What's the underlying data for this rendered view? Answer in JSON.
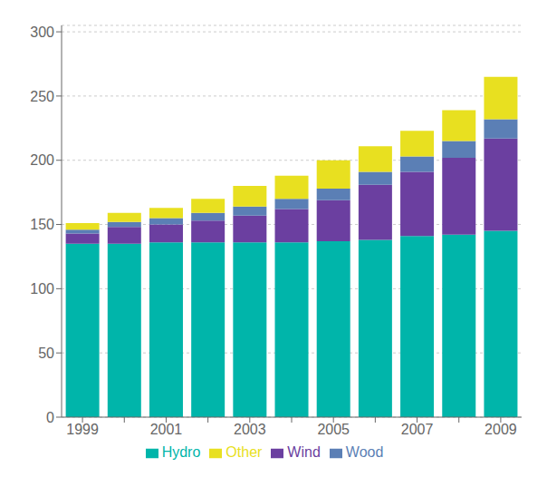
{
  "chart_data": {
    "type": "bar",
    "stacked": true,
    "categories": [
      "1999",
      null,
      "2001",
      null,
      "2003",
      null,
      "2005",
      null,
      "2007",
      null,
      "2009"
    ],
    "series": [
      {
        "name": "Hydro",
        "color": "#00b5aa",
        "values": [
          135,
          135,
          136,
          136,
          136,
          136,
          137,
          138,
          141,
          142,
          145
        ]
      },
      {
        "name": "Wind",
        "color": "#6b3fa0",
        "values": [
          8,
          13,
          14,
          17,
          21,
          26,
          32,
          43,
          50,
          60,
          72
        ]
      },
      {
        "name": "Wood",
        "color": "#5b7fb5",
        "values": [
          3,
          4,
          5,
          6,
          7,
          8,
          9,
          10,
          12,
          13,
          15
        ]
      },
      {
        "name": "Other",
        "color": "#e8e020",
        "values": [
          5,
          7,
          8,
          11,
          16,
          18,
          22,
          20,
          20,
          24,
          33
        ]
      }
    ],
    "ylim": [
      0,
      305
    ],
    "yticks": [
      0,
      50,
      100,
      150,
      200,
      250,
      300
    ],
    "grid": true,
    "legend": "bottom"
  }
}
